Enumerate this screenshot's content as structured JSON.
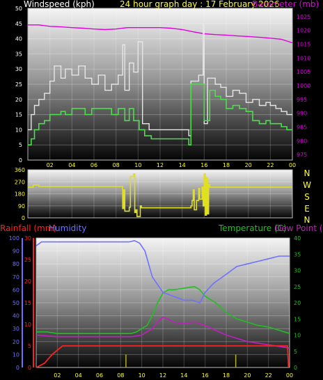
{
  "header": {
    "graph_title": "24 hour graph day : 17 February 2026",
    "wind_label": "Windspeed (kph)",
    "baro_label": "Barometer (mb)",
    "rain_label": "Rainfall (mm)",
    "humidity_label": "Humidity",
    "temp_label": "Temperature (C)",
    "dew_label": "Dew Point (C)"
  },
  "compass": [
    "N",
    "W",
    "S",
    "E",
    "N"
  ],
  "colors": {
    "wind_avg": "#4be04b",
    "wind_gust": "#e6e6e6",
    "barometer": "#e000e0",
    "direction": "#e0e020",
    "rain": "#ff2020",
    "humidity": "#7070ff",
    "temperature": "#20c020",
    "dew_point": "#c020c0",
    "rain_rate": "#b0b020"
  },
  "chart_data": [
    {
      "type": "line",
      "name": "wind-and-pressure",
      "x_ticks": [
        "02",
        "04",
        "06",
        "08",
        "10",
        "12",
        "14",
        "16",
        "18",
        "20",
        "22",
        "00"
      ],
      "x_range": [
        0,
        24
      ],
      "y_left_ticks": [
        0,
        5,
        10,
        15,
        20,
        25,
        30,
        35,
        40,
        45,
        50
      ],
      "y_left_range": [
        0,
        50
      ],
      "y_right_ticks": [
        975,
        980,
        985,
        990,
        995,
        1000,
        1005,
        1010,
        1015,
        1020,
        1025
      ],
      "y_right_range": [
        973,
        1028
      ],
      "series": [
        {
          "name": "Windspeed",
          "axis": "left",
          "x": [
            0,
            0.3,
            0.6,
            1,
            1.5,
            2,
            2.4,
            3,
            3.4,
            4,
            4.6,
            5.2,
            5.8,
            6.4,
            7,
            7.6,
            8.2,
            8.8,
            9.2,
            9.6,
            10.1,
            10.6,
            11.2,
            12,
            13,
            14,
            14.6,
            14.8,
            15.5,
            16,
            16.5,
            17,
            17.5,
            18,
            18.6,
            19.2,
            19.8,
            20.4,
            21,
            21.6,
            22,
            22.5,
            23,
            23.5,
            24
          ],
          "y": [
            5,
            7,
            10,
            12,
            13,
            15,
            15,
            16,
            15,
            17,
            17,
            15,
            17,
            17,
            17,
            15,
            17,
            13,
            17,
            13,
            10,
            8,
            7,
            7,
            7,
            7,
            5,
            25,
            25,
            13,
            23,
            21,
            20,
            17,
            18,
            17,
            16,
            13,
            12,
            13,
            12,
            12,
            11,
            10,
            10
          ]
        },
        {
          "name": "Gust",
          "axis": "left",
          "x": [
            0,
            0.3,
            0.6,
            1,
            1.5,
            2,
            2.4,
            3,
            3.4,
            4,
            4.6,
            5.2,
            5.8,
            6.4,
            7,
            7.6,
            8.2,
            8.6,
            8.8,
            9.2,
            9.6,
            10,
            10.4,
            11,
            12,
            13,
            14,
            14.6,
            14.8,
            15.5,
            15.9,
            16,
            16.3,
            17,
            17.5,
            18,
            18.6,
            19.2,
            19.8,
            20.4,
            21,
            21.6,
            22,
            22.5,
            23,
            23.5,
            24
          ],
          "y": [
            10,
            15,
            18,
            20,
            22,
            26,
            31,
            27,
            30,
            28,
            31,
            27,
            25,
            28,
            23,
            25,
            28,
            38,
            23,
            32,
            29,
            39,
            12,
            10,
            10,
            10,
            10,
            8,
            26,
            28,
            45,
            12,
            27,
            25,
            24,
            21,
            23,
            22,
            19,
            20,
            18,
            19,
            18,
            17,
            16,
            15,
            15
          ]
        },
        {
          "name": "Barometer",
          "axis": "right",
          "x": [
            0,
            1,
            2,
            3,
            4,
            5,
            6,
            7,
            8,
            9,
            10,
            11,
            12,
            13,
            14,
            15,
            16,
            17,
            18,
            19,
            20,
            21,
            22,
            23,
            24
          ],
          "y": [
            1022,
            1022,
            1021.5,
            1021.3,
            1021,
            1020.8,
            1020.5,
            1020.3,
            1020.5,
            1021,
            1021,
            1021,
            1021,
            1020.8,
            1020.3,
            1019.5,
            1018.8,
            1018.5,
            1018.3,
            1018,
            1017.8,
            1017.5,
            1017.2,
            1016.8,
            1015.5
          ]
        }
      ]
    },
    {
      "type": "line",
      "name": "wind-direction",
      "x_range": [
        0,
        24
      ],
      "y_ticks": [
        0,
        90,
        180,
        270,
        360
      ],
      "y_range": [
        0,
        360
      ],
      "series": [
        {
          "name": "Wind direction",
          "x": [
            0,
            0.5,
            1,
            3,
            5,
            7,
            8.5,
            8.6,
            8.7,
            8.8,
            9.2,
            9.3,
            9.6,
            9.7,
            9.8,
            9.9,
            10.2,
            10.3,
            14.8,
            14.9,
            15,
            15.1,
            15.3,
            15.5,
            15.6,
            15.8,
            15.9,
            16,
            16.1,
            16.2,
            16.3,
            16.4,
            16.5,
            17,
            24
          ],
          "y": [
            230,
            245,
            235,
            235,
            235,
            235,
            235,
            70,
            210,
            50,
            80,
            310,
            330,
            40,
            60,
            10,
            90,
            75,
            90,
            130,
            210,
            60,
            130,
            220,
            140,
            230,
            90,
            330,
            20,
            300,
            30,
            250,
            230,
            230,
            230
          ]
        }
      ]
    },
    {
      "type": "line",
      "name": "rain-humidity-temperature",
      "x_range": [
        0,
        24
      ],
      "rain_ticks": [
        0,
        5,
        10,
        15,
        20,
        25,
        30
      ],
      "rain_range": [
        0,
        30
      ],
      "humidity_ticks": [
        0,
        10,
        20,
        30,
        40,
        50,
        60,
        70,
        80,
        90,
        100
      ],
      "humidity_range": [
        0,
        100
      ],
      "temp_ticks": [
        0,
        5,
        10,
        15,
        20,
        25,
        30,
        35,
        40
      ],
      "temp_range": [
        0,
        40
      ],
      "series": [
        {
          "name": "Rainfall",
          "axis": "rain",
          "x": [
            0,
            0.8,
            1.5,
            2,
            2.5,
            6,
            12,
            18,
            23.8,
            23.9
          ],
          "y": [
            0,
            1,
            3,
            4,
            5,
            5,
            5,
            5,
            5,
            0
          ]
        },
        {
          "name": "Humidity",
          "axis": "humidity",
          "x": [
            0,
            0.5,
            2,
            4,
            6,
            8,
            8.8,
            9.3,
            9.8,
            10.3,
            11,
            12,
            13,
            14,
            14.8,
            15.5,
            16,
            16.8,
            18,
            19,
            20,
            21,
            22,
            23,
            24
          ],
          "y": [
            94,
            97,
            97,
            97,
            97,
            97,
            97,
            98,
            96,
            90,
            70,
            58,
            55,
            52,
            52,
            50,
            58,
            65,
            72,
            78,
            80,
            82,
            84,
            86,
            86
          ]
        },
        {
          "name": "Temperature",
          "axis": "temp",
          "x": [
            0,
            1,
            2,
            4,
            6,
            8,
            9,
            9.5,
            10,
            10.5,
            11,
            11.5,
            12,
            12.5,
            13,
            14,
            15,
            15.5,
            16,
            17,
            18,
            19,
            20,
            21,
            22,
            23,
            24
          ],
          "y": [
            11,
            11,
            10.5,
            10.5,
            10.5,
            10.5,
            10.5,
            11,
            12,
            13,
            16,
            20,
            23,
            24,
            24,
            24.5,
            25,
            24,
            22,
            20,
            17,
            15,
            14,
            13,
            12.5,
            11.5,
            10.5
          ]
        },
        {
          "name": "Dew Point",
          "axis": "temp",
          "x": [
            0,
            2,
            4,
            6,
            8,
            9,
            10,
            11,
            11.5,
            12,
            12.5,
            13,
            14,
            15,
            15.5,
            16,
            17,
            18,
            19,
            20,
            21,
            22,
            23,
            24
          ],
          "y": [
            10,
            9.5,
            9.5,
            9.5,
            9.5,
            9.5,
            10,
            12,
            14,
            15.5,
            15,
            14,
            13.5,
            14,
            13.5,
            13,
            11.5,
            10,
            9,
            8,
            7.5,
            7,
            6.5,
            6
          ]
        },
        {
          "name": "Rain rate",
          "axis": "rain",
          "style": "bars",
          "x": [
            8.5,
            18.9
          ],
          "y": [
            3,
            3
          ]
        }
      ]
    }
  ]
}
